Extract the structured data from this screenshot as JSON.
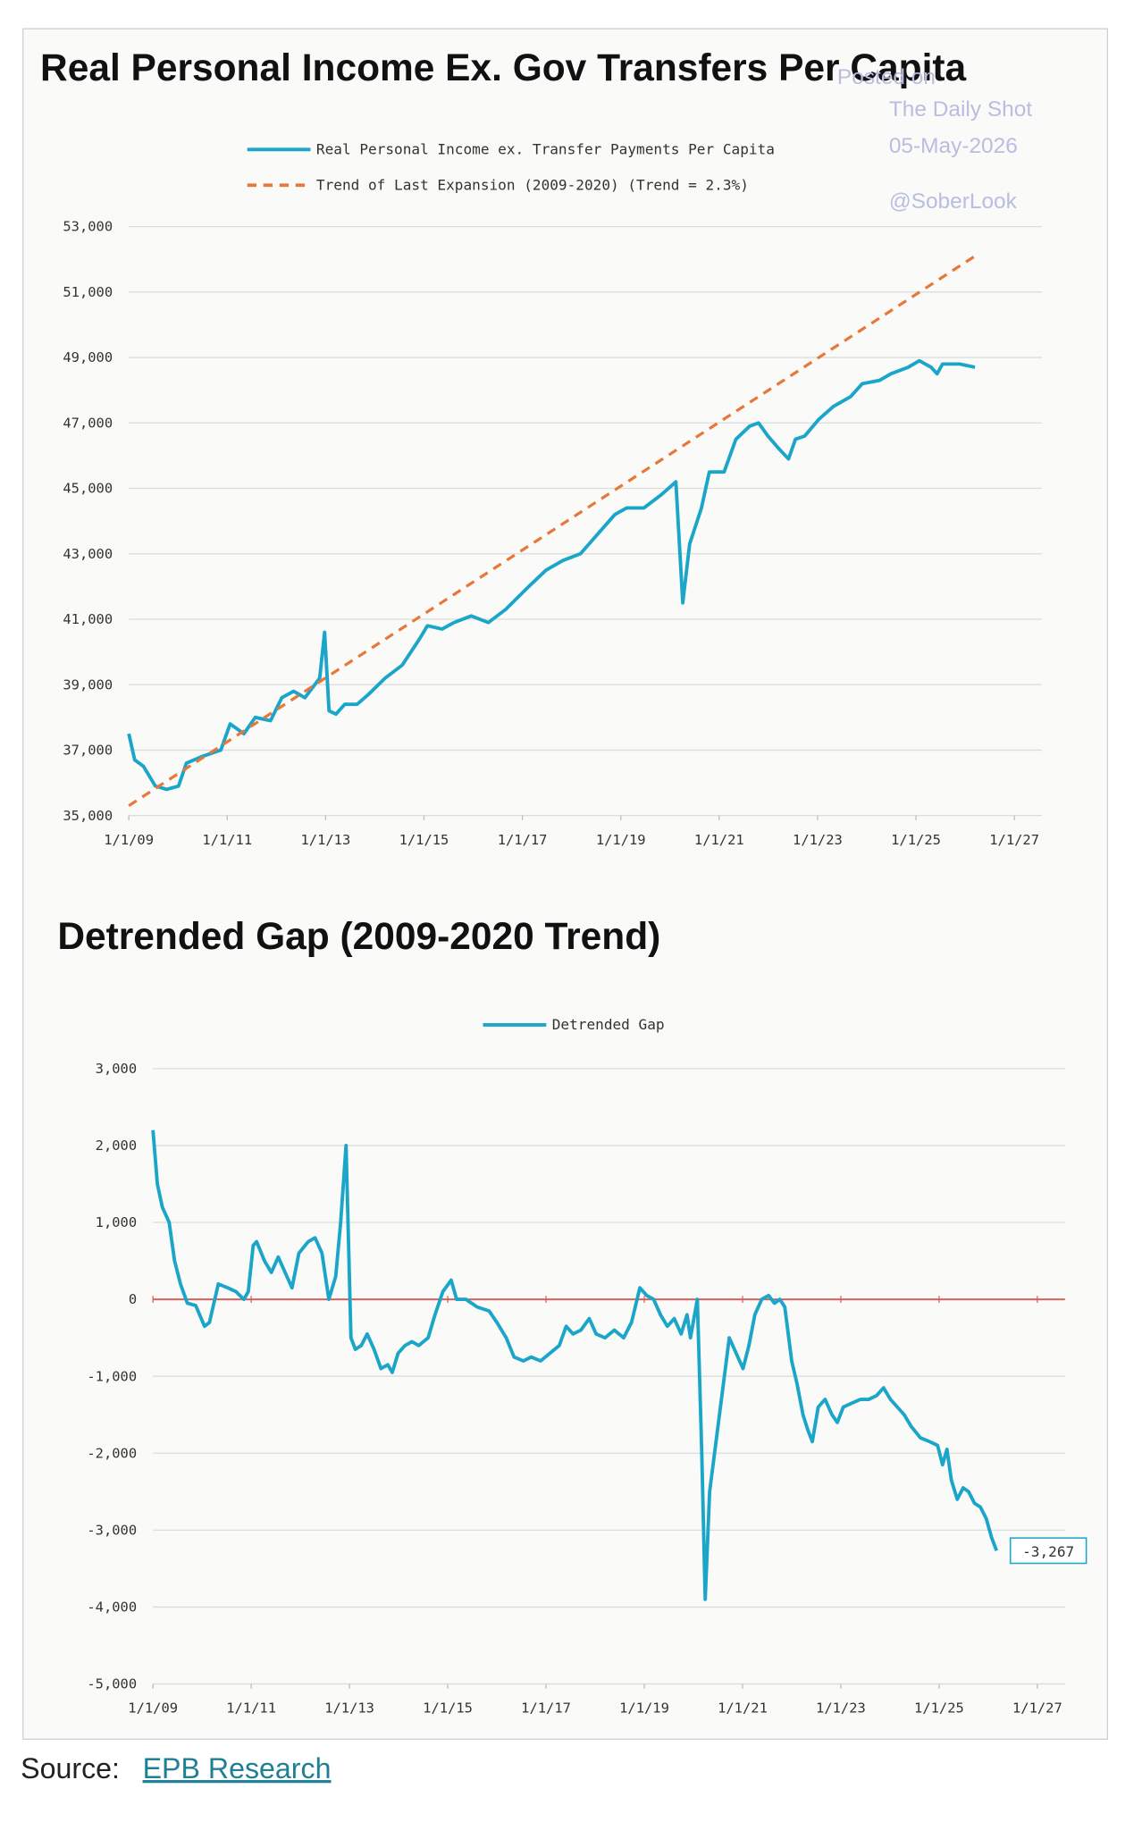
{
  "chart_data": [
    {
      "type": "line",
      "title": "Real Personal Income Ex. Gov Transfers Per Capita",
      "watermark": [
        "Posted on",
        "The Daily Shot",
        "05-May-2026",
        "@SoberLook"
      ],
      "xlim": [
        2009,
        2027
      ],
      "xticks": [
        {
          "value": 2009,
          "label": "1/1/09"
        },
        {
          "value": 2011,
          "label": "1/1/11"
        },
        {
          "value": 2013,
          "label": "1/1/13"
        },
        {
          "value": 2015,
          "label": "1/1/15"
        },
        {
          "value": 2017,
          "label": "1/1/17"
        },
        {
          "value": 2019,
          "label": "1/1/19"
        },
        {
          "value": 2021,
          "label": "1/1/21"
        },
        {
          "value": 2023,
          "label": "1/1/23"
        },
        {
          "value": 2025,
          "label": "1/1/25"
        },
        {
          "value": 2027,
          "label": "1/1/27"
        }
      ],
      "ylim": [
        35000,
        53000
      ],
      "yticks": [
        {
          "value": 35000,
          "label": "35,000"
        },
        {
          "value": 37000,
          "label": "37,000"
        },
        {
          "value": 39000,
          "label": "39,000"
        },
        {
          "value": 41000,
          "label": "41,000"
        },
        {
          "value": 43000,
          "label": "43,000"
        },
        {
          "value": 45000,
          "label": "45,000"
        },
        {
          "value": 47000,
          "label": "47,000"
        },
        {
          "value": 49000,
          "label": "49,000"
        },
        {
          "value": 51000,
          "label": "51,000"
        },
        {
          "value": 53000,
          "label": "53,000"
        }
      ],
      "grid": true,
      "series": [
        {
          "name": "Real Personal Income ex. Transfer Payments Per Capita",
          "color": "#1ba6c9",
          "line_style": "solid",
          "x": [
            2009.0,
            2009.12,
            2009.3,
            2009.54,
            2009.77,
            2010.01,
            2010.17,
            2010.48,
            2010.87,
            2011.06,
            2011.34,
            2011.57,
            2011.88,
            2012.11,
            2012.35,
            2012.58,
            2012.88,
            2012.98,
            2013.07,
            2013.21,
            2013.39,
            2013.64,
            2013.87,
            2014.21,
            2014.56,
            2014.91,
            2015.07,
            2015.37,
            2015.61,
            2015.96,
            2016.31,
            2016.66,
            2017.13,
            2017.48,
            2017.83,
            2018.18,
            2018.53,
            2018.88,
            2019.12,
            2019.47,
            2019.82,
            2020.12,
            2020.26,
            2020.4,
            2020.64,
            2020.8,
            2021.1,
            2021.34,
            2021.62,
            2021.8,
            2021.99,
            2022.22,
            2022.41,
            2022.55,
            2022.74,
            2023.02,
            2023.32,
            2023.67,
            2023.91,
            2024.26,
            2024.49,
            2024.84,
            2025.07,
            2025.31,
            2025.43,
            2025.54,
            2025.89,
            2026.2
          ],
          "values": [
            37500,
            36700,
            36500,
            35900,
            35800,
            35900,
            36600,
            36800,
            37000,
            37800,
            37500,
            38000,
            37900,
            38600,
            38800,
            38600,
            39200,
            40600,
            38200,
            38100,
            38400,
            38400,
            38700,
            39200,
            39600,
            40400,
            40800,
            40700,
            40900,
            41100,
            40900,
            41300,
            42000,
            42500,
            42800,
            43000,
            43600,
            44200,
            44400,
            44400,
            44800,
            45200,
            41500,
            43300,
            44400,
            45500,
            45500,
            46500,
            46900,
            47000,
            46600,
            46200,
            45900,
            46500,
            46600,
            47100,
            47500,
            47800,
            48200,
            48300,
            48500,
            48700,
            48900,
            48700,
            48500,
            48800,
            48800,
            48700
          ]
        },
        {
          "name": "Trend of Last Expansion (2009-2020) (Trend = 2.3%)",
          "color": "#e8773a",
          "line_style": "dashed",
          "x": [
            2009.0,
            2026.2
          ],
          "values": [
            35300,
            52100
          ]
        }
      ]
    },
    {
      "type": "line",
      "title": "Detrended Gap (2009-2020 Trend)",
      "xlim": [
        2009,
        2027
      ],
      "xticks": [
        {
          "value": 2009,
          "label": "1/1/09"
        },
        {
          "value": 2011,
          "label": "1/1/11"
        },
        {
          "value": 2013,
          "label": "1/1/13"
        },
        {
          "value": 2015,
          "label": "1/1/15"
        },
        {
          "value": 2017,
          "label": "1/1/17"
        },
        {
          "value": 2019,
          "label": "1/1/19"
        },
        {
          "value": 2021,
          "label": "1/1/21"
        },
        {
          "value": 2023,
          "label": "1/1/23"
        },
        {
          "value": 2025,
          "label": "1/1/25"
        },
        {
          "value": 2027,
          "label": "1/1/27"
        }
      ],
      "ylim": [
        -5000,
        3000
      ],
      "yticks": [
        {
          "value": -5000,
          "label": "-5,000"
        },
        {
          "value": -4000,
          "label": "-4,000"
        },
        {
          "value": -3000,
          "label": "-3,000"
        },
        {
          "value": -2000,
          "label": "-2,000"
        },
        {
          "value": -1000,
          "label": "-1,000"
        },
        0,
        {
          "value": 1000,
          "label": "1,000"
        },
        {
          "value": 2000,
          "label": "2,000"
        },
        {
          "value": 3000,
          "label": "3,000"
        }
      ],
      "grid": true,
      "zero_line_color": "#d9605c",
      "series": [
        {
          "name": "Detrended Gap",
          "color": "#1ba6c9",
          "line_style": "solid",
          "end_label": "-3,267",
          "x": [
            2009.0,
            2009.09,
            2009.19,
            2009.33,
            2009.44,
            2009.56,
            2009.7,
            2009.87,
            2010.05,
            2010.15,
            2010.33,
            2010.52,
            2010.69,
            2010.85,
            2010.94,
            2011.04,
            2011.11,
            2011.27,
            2011.41,
            2011.55,
            2011.69,
            2011.83,
            2011.97,
            2012.16,
            2012.3,
            2012.44,
            2012.58,
            2012.72,
            2012.82,
            2012.93,
            2013.03,
            2013.12,
            2013.24,
            2013.36,
            2013.5,
            2013.64,
            2013.78,
            2013.87,
            2013.99,
            2014.13,
            2014.27,
            2014.41,
            2014.6,
            2014.74,
            2014.9,
            2015.07,
            2015.18,
            2015.37,
            2015.6,
            2015.84,
            2016.0,
            2016.19,
            2016.35,
            2016.54,
            2016.7,
            2016.89,
            2017.08,
            2017.27,
            2017.41,
            2017.55,
            2017.71,
            2017.88,
            2018.02,
            2018.2,
            2018.39,
            2018.58,
            2018.74,
            2018.91,
            2019.05,
            2019.19,
            2019.33,
            2019.47,
            2019.61,
            2019.75,
            2019.87,
            2019.94,
            2020.08,
            2020.17,
            2020.24,
            2020.33,
            2020.43,
            2020.57,
            2020.73,
            2020.87,
            2021.01,
            2021.13,
            2021.25,
            2021.39,
            2021.53,
            2021.65,
            2021.76,
            2021.86,
            2022.0,
            2022.11,
            2022.23,
            2022.33,
            2022.42,
            2022.54,
            2022.68,
            2022.82,
            2022.93,
            2023.05,
            2023.22,
            2023.4,
            2023.57,
            2023.73,
            2023.87,
            2024.01,
            2024.15,
            2024.29,
            2024.43,
            2024.62,
            2024.81,
            2024.97,
            2025.07,
            2025.16,
            2025.25,
            2025.37,
            2025.49,
            2025.6,
            2025.72,
            2025.84,
            2025.96,
            2026.07,
            2026.17
          ],
          "values": [
            2200,
            1500,
            1200,
            1000,
            500,
            200,
            -50,
            -80,
            -350,
            -300,
            200,
            150,
            100,
            0,
            100,
            700,
            750,
            500,
            350,
            550,
            350,
            150,
            600,
            750,
            800,
            600,
            0,
            300,
            1000,
            2000,
            -500,
            -650,
            -600,
            -450,
            -650,
            -900,
            -850,
            -950,
            -700,
            -600,
            -550,
            -600,
            -500,
            -200,
            100,
            250,
            0,
            0,
            -100,
            -150,
            -300,
            -500,
            -750,
            -800,
            -750,
            -800,
            -700,
            -600,
            -350,
            -450,
            -400,
            -250,
            -450,
            -500,
            -400,
            -500,
            -300,
            150,
            50,
            0,
            -200,
            -350,
            -250,
            -450,
            -200,
            -500,
            0,
            -2000,
            -3900,
            -2500,
            -2000,
            -1300,
            -500,
            -700,
            -900,
            -600,
            -200,
            0,
            50,
            -50,
            0,
            -100,
            -800,
            -1100,
            -1500,
            -1700,
            -1850,
            -1400,
            -1300,
            -1500,
            -1600,
            -1400,
            -1350,
            -1300,
            -1300,
            -1250,
            -1150,
            -1300,
            -1400,
            -1500,
            -1650,
            -1800,
            -1850,
            -1900,
            -2150,
            -1950,
            -2350,
            -2600,
            -2450,
            -2500,
            -2650,
            -2700,
            -2850,
            -3100,
            -3267
          ]
        }
      ]
    }
  ],
  "source": {
    "prefix": "Source:",
    "link": "EPB Research"
  }
}
